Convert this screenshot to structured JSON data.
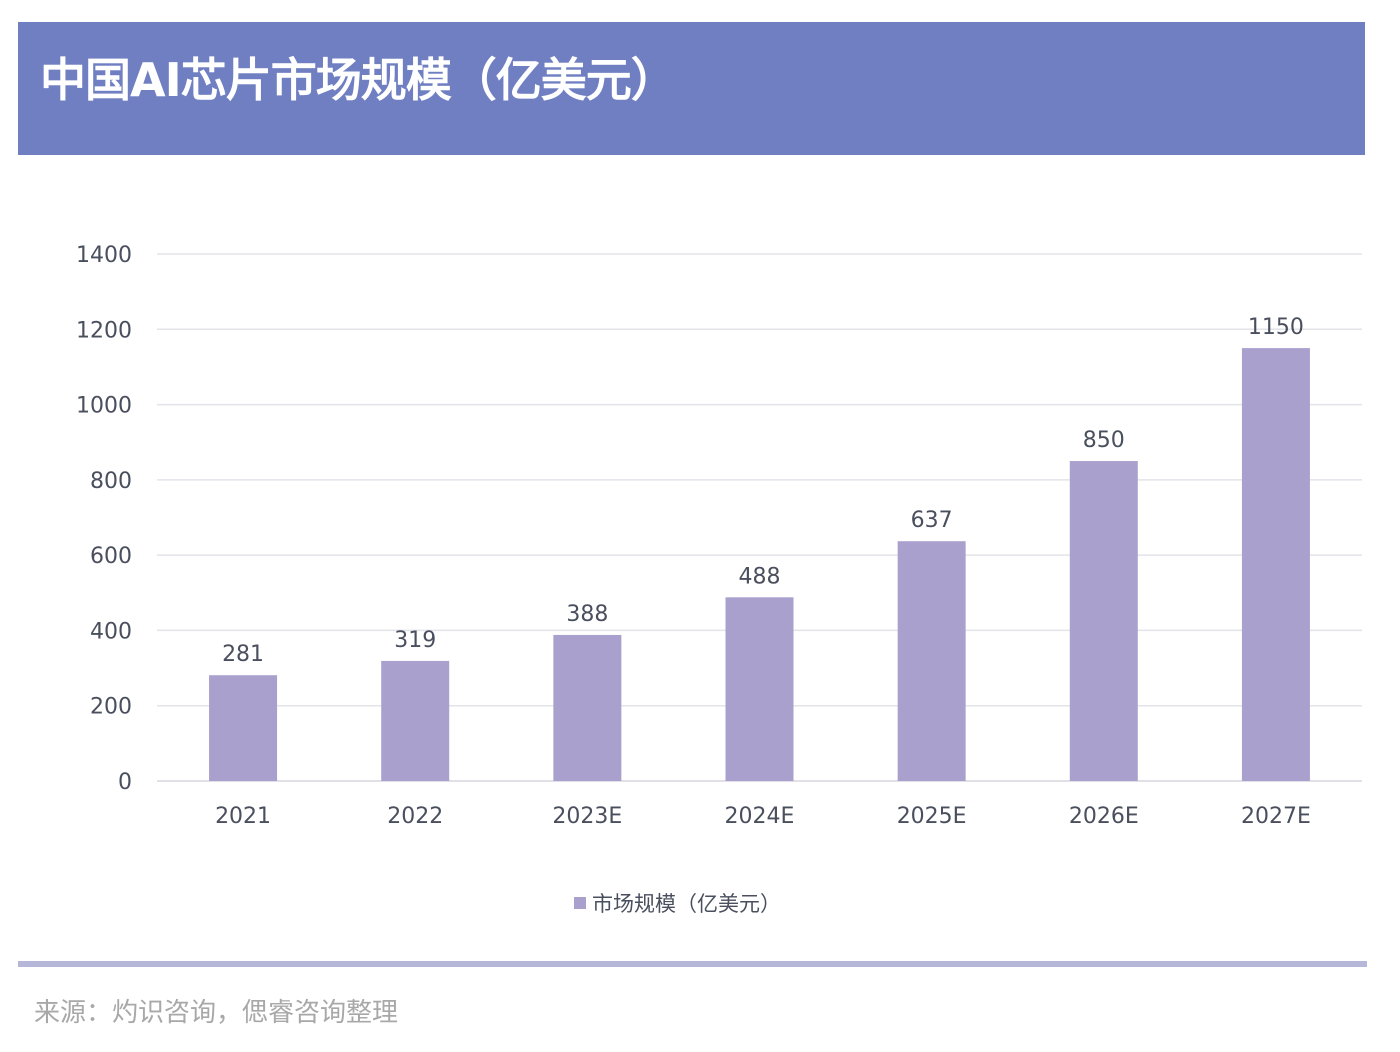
{
  "header": {
    "title": "中国AI芯片市场规模（亿美元）"
  },
  "chart_data": {
    "type": "bar",
    "title": "中国AI芯片市场规模（亿美元）",
    "categories": [
      "2021",
      "2022",
      "2023E",
      "2024E",
      "2025E",
      "2026E",
      "2027E"
    ],
    "series": [
      {
        "name": "市场规模（亿美元）",
        "values": [
          281,
          319,
          388,
          488,
          637,
          850,
          1150
        ],
        "color": "#a9a0cd"
      }
    ],
    "ylim": [
      0,
      1400
    ],
    "yticks": [
      0,
      200,
      400,
      600,
      800,
      1000,
      1200,
      1400
    ],
    "grid": true,
    "legend": "bottom",
    "data_labels": true
  },
  "footer": {
    "source": "来源：灼识咨询，偲睿咨询整理"
  },
  "colors": {
    "header": "#6f7fc2",
    "bar": "#a9a0cd",
    "divider": "#b6b6d8"
  }
}
